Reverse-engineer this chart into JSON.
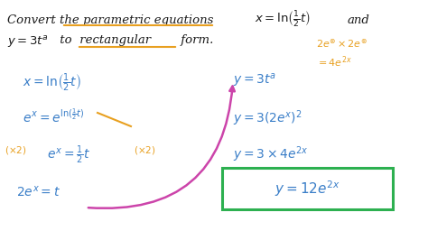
{
  "bg_color": "#ffffff",
  "black": "#1a1a1a",
  "blue": "#3a7ec8",
  "orange": "#e8a020",
  "green": "#2db050",
  "pink": "#cc44aa",
  "figsize": [
    4.74,
    2.66
  ],
  "dpi": 100,
  "title_line1": "Convert the parametric equations",
  "title_eq": "$x = \\ln\\!\\left(\\frac{1}{2}t\\right)$",
  "title_and": "and",
  "line2a": "$y = 3t^{a}$",
  "line2b": " to ",
  "line2c": "rectangular",
  "line2d": " form.",
  "orange_note1": "$2e^{\\circledast} \\times 2e^{\\circledast}$",
  "orange_note2": "$= 4e^{2x}$",
  "left_eq1": "$x = \\ln\\!\\left(\\frac{1}{2}t\\right)$",
  "left_eq2": "$e^{x} = e^{\\ln(\\frac{1}{2}t)}$",
  "left_eq3a": "$(\\times 2)$",
  "left_eq3b": "$e^{x} = \\frac{1}{2}t$",
  "left_eq3c": "$(\\times 2)$",
  "left_eq4": "$2e^{x} = t$",
  "right_eq1": "$y = 3t^{a}$",
  "right_eq2": "$y = 3\\left(2e^{x}\\right)^{2}$",
  "right_eq3": "$y = 3 \\times 4e^{2x}$",
  "right_eq4": "$y = 12e^{2x}$"
}
